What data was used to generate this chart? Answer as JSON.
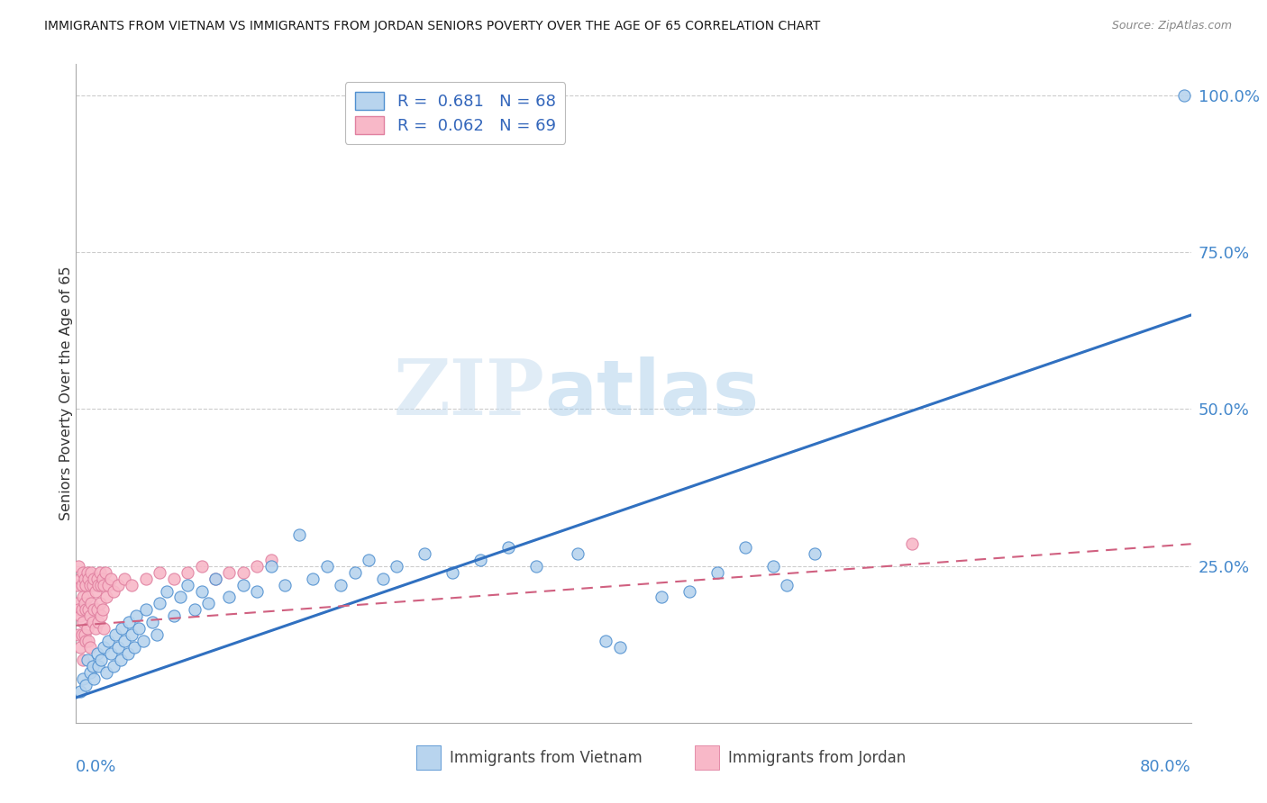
{
  "title": "IMMIGRANTS FROM VIETNAM VS IMMIGRANTS FROM JORDAN SENIORS POVERTY OVER THE AGE OF 65 CORRELATION CHART",
  "source": "Source: ZipAtlas.com",
  "ylabel": "Seniors Poverty Over the Age of 65",
  "vietnam_R": 0.681,
  "vietnam_N": 68,
  "jordan_R": 0.062,
  "jordan_N": 69,
  "vietnam_color": "#b8d4ee",
  "vietnam_line_color": "#3070c0",
  "vietnam_edge_color": "#5090d0",
  "jordan_color": "#f8b8c8",
  "jordan_line_color": "#d06080",
  "jordan_edge_color": "#e080a0",
  "legend_label_vietnam": "Immigrants from Vietnam",
  "legend_label_jordan": "Immigrants from Jordan",
  "watermark_zip": "ZIP",
  "watermark_atlas": "atlas",
  "background_color": "#ffffff",
  "grid_color": "#cccccc",
  "xlim": [
    0.0,
    0.8
  ],
  "ylim": [
    0.0,
    1.05
  ],
  "ytick_values": [
    0.25,
    0.5,
    0.75,
    1.0
  ],
  "ytick_labels": [
    "25.0%",
    "50.0%",
    "75.0%",
    "100.0%"
  ],
  "vietnam_line_x": [
    0.0,
    0.8
  ],
  "vietnam_line_y": [
    0.04,
    0.65
  ],
  "jordan_line_x": [
    0.0,
    0.8
  ],
  "jordan_line_y": [
    0.155,
    0.285
  ],
  "vietnam_scatter": [
    [
      0.003,
      0.05
    ],
    [
      0.005,
      0.07
    ],
    [
      0.007,
      0.06
    ],
    [
      0.008,
      0.1
    ],
    [
      0.01,
      0.08
    ],
    [
      0.012,
      0.09
    ],
    [
      0.013,
      0.07
    ],
    [
      0.015,
      0.11
    ],
    [
      0.016,
      0.09
    ],
    [
      0.018,
      0.1
    ],
    [
      0.02,
      0.12
    ],
    [
      0.022,
      0.08
    ],
    [
      0.023,
      0.13
    ],
    [
      0.025,
      0.11
    ],
    [
      0.027,
      0.09
    ],
    [
      0.028,
      0.14
    ],
    [
      0.03,
      0.12
    ],
    [
      0.032,
      0.1
    ],
    [
      0.033,
      0.15
    ],
    [
      0.035,
      0.13
    ],
    [
      0.037,
      0.11
    ],
    [
      0.038,
      0.16
    ],
    [
      0.04,
      0.14
    ],
    [
      0.042,
      0.12
    ],
    [
      0.043,
      0.17
    ],
    [
      0.045,
      0.15
    ],
    [
      0.048,
      0.13
    ],
    [
      0.05,
      0.18
    ],
    [
      0.055,
      0.16
    ],
    [
      0.058,
      0.14
    ],
    [
      0.06,
      0.19
    ],
    [
      0.065,
      0.21
    ],
    [
      0.07,
      0.17
    ],
    [
      0.075,
      0.2
    ],
    [
      0.08,
      0.22
    ],
    [
      0.085,
      0.18
    ],
    [
      0.09,
      0.21
    ],
    [
      0.095,
      0.19
    ],
    [
      0.1,
      0.23
    ],
    [
      0.11,
      0.2
    ],
    [
      0.12,
      0.22
    ],
    [
      0.13,
      0.21
    ],
    [
      0.14,
      0.25
    ],
    [
      0.15,
      0.22
    ],
    [
      0.16,
      0.3
    ],
    [
      0.17,
      0.23
    ],
    [
      0.18,
      0.25
    ],
    [
      0.19,
      0.22
    ],
    [
      0.2,
      0.24
    ],
    [
      0.21,
      0.26
    ],
    [
      0.22,
      0.23
    ],
    [
      0.23,
      0.25
    ],
    [
      0.25,
      0.27
    ],
    [
      0.27,
      0.24
    ],
    [
      0.29,
      0.26
    ],
    [
      0.31,
      0.28
    ],
    [
      0.33,
      0.25
    ],
    [
      0.36,
      0.27
    ],
    [
      0.38,
      0.13
    ],
    [
      0.39,
      0.12
    ],
    [
      0.42,
      0.2
    ],
    [
      0.44,
      0.21
    ],
    [
      0.46,
      0.24
    ],
    [
      0.48,
      0.28
    ],
    [
      0.5,
      0.25
    ],
    [
      0.51,
      0.22
    ],
    [
      0.53,
      0.27
    ],
    [
      0.795,
      1.0
    ]
  ],
  "jordan_scatter": [
    [
      0.001,
      0.22
    ],
    [
      0.001,
      0.19
    ],
    [
      0.002,
      0.25
    ],
    [
      0.002,
      0.18
    ],
    [
      0.002,
      0.14
    ],
    [
      0.003,
      0.23
    ],
    [
      0.003,
      0.17
    ],
    [
      0.003,
      0.12
    ],
    [
      0.004,
      0.22
    ],
    [
      0.004,
      0.18
    ],
    [
      0.004,
      0.14
    ],
    [
      0.005,
      0.24
    ],
    [
      0.005,
      0.2
    ],
    [
      0.005,
      0.16
    ],
    [
      0.005,
      0.1
    ],
    [
      0.006,
      0.23
    ],
    [
      0.006,
      0.19
    ],
    [
      0.006,
      0.14
    ],
    [
      0.007,
      0.22
    ],
    [
      0.007,
      0.18
    ],
    [
      0.007,
      0.13
    ],
    [
      0.008,
      0.24
    ],
    [
      0.008,
      0.2
    ],
    [
      0.008,
      0.15
    ],
    [
      0.009,
      0.23
    ],
    [
      0.009,
      0.18
    ],
    [
      0.009,
      0.13
    ],
    [
      0.01,
      0.22
    ],
    [
      0.01,
      0.17
    ],
    [
      0.01,
      0.12
    ],
    [
      0.011,
      0.24
    ],
    [
      0.011,
      0.19
    ],
    [
      0.012,
      0.22
    ],
    [
      0.012,
      0.16
    ],
    [
      0.013,
      0.23
    ],
    [
      0.013,
      0.18
    ],
    [
      0.014,
      0.21
    ],
    [
      0.014,
      0.15
    ],
    [
      0.015,
      0.23
    ],
    [
      0.015,
      0.18
    ],
    [
      0.016,
      0.22
    ],
    [
      0.016,
      0.16
    ],
    [
      0.017,
      0.24
    ],
    [
      0.017,
      0.19
    ],
    [
      0.018,
      0.22
    ],
    [
      0.018,
      0.17
    ],
    [
      0.019,
      0.23
    ],
    [
      0.019,
      0.18
    ],
    [
      0.02,
      0.22
    ],
    [
      0.02,
      0.15
    ],
    [
      0.021,
      0.24
    ],
    [
      0.022,
      0.2
    ],
    [
      0.023,
      0.22
    ],
    [
      0.025,
      0.23
    ],
    [
      0.027,
      0.21
    ],
    [
      0.03,
      0.22
    ],
    [
      0.035,
      0.23
    ],
    [
      0.04,
      0.22
    ],
    [
      0.05,
      0.23
    ],
    [
      0.06,
      0.24
    ],
    [
      0.07,
      0.23
    ],
    [
      0.08,
      0.24
    ],
    [
      0.09,
      0.25
    ],
    [
      0.1,
      0.23
    ],
    [
      0.11,
      0.24
    ],
    [
      0.12,
      0.24
    ],
    [
      0.13,
      0.25
    ],
    [
      0.14,
      0.26
    ],
    [
      0.6,
      0.285
    ]
  ]
}
